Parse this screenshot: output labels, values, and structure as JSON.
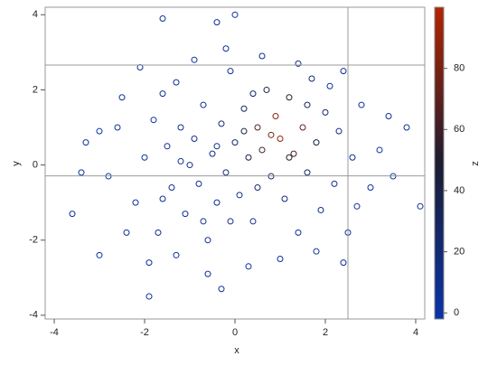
{
  "chart_data": {
    "type": "scatter",
    "xlabel": "x",
    "ylabel": "y",
    "zlabel": "z",
    "xlim": [
      -4.2,
      4.2
    ],
    "xticks": [
      -4,
      -2,
      0,
      2,
      4
    ],
    "ylim": [
      -4.1,
      4.2
    ],
    "yticks": [
      -4,
      -2,
      0,
      2,
      4
    ],
    "zlim": [
      -2,
      100
    ],
    "zticks": [
      0,
      20,
      40,
      60,
      80
    ],
    "colormap": [
      "#0a33a8",
      "#1c1c30",
      "#b32400"
    ],
    "ref_lines": {
      "x": [
        2.5
      ],
      "y": [
        2.66,
        -0.29
      ]
    },
    "x": [
      -3.6,
      -1.6,
      0,
      -0.4,
      4.1,
      3.8,
      -1.9,
      -0.3,
      3.4,
      2.4,
      -3.3,
      -3.0,
      -2.5,
      -2.2,
      -2.0,
      -1.8,
      -1.7,
      -1.5,
      -1.4,
      -1.3,
      -1.2,
      -1.1,
      -1.0,
      -0.9,
      -0.8,
      -0.7,
      -0.6,
      -0.5,
      -0.4,
      -0.3,
      -0.2,
      -0.1,
      0.0,
      0.1,
      0.2,
      0.3,
      0.4,
      0.5,
      0.6,
      0.7,
      0.8,
      0.9,
      1.0,
      1.1,
      1.2,
      1.3,
      1.4,
      1.5,
      1.6,
      1.7,
      1.8,
      1.9,
      2.0,
      2.2,
      2.3,
      2.5,
      2.6,
      2.8,
      3.0,
      3.2,
      -2.8,
      -2.6,
      -2.4,
      -2.1,
      -1.9,
      -1.6,
      -1.3,
      -0.9,
      -0.6,
      -0.2,
      0.3,
      0.6,
      1.0,
      1.4,
      1.8,
      2.1,
      2.4,
      2.7,
      -3.0,
      -3.4,
      3.5,
      -1.2,
      -0.7,
      0.2,
      0.8,
      1.2,
      -0.4,
      0.5,
      -1.6,
      -0.1,
      0.4,
      1.6
    ],
    "y": [
      -1.3,
      3.9,
      4,
      3.8,
      -1.1,
      1.0,
      -3.5,
      -3.3,
      1.3,
      2.5,
      0.6,
      -2.4,
      1.8,
      -1.0,
      0.2,
      1.2,
      -1.8,
      0.5,
      -0.6,
      2.2,
      1.0,
      -1.3,
      0.0,
      0.7,
      -0.5,
      1.6,
      -2.0,
      0.3,
      -1.0,
      1.1,
      -0.2,
      2.5,
      0.6,
      -0.8,
      1.5,
      0.2,
      -1.5,
      1.0,
      0.4,
      2.0,
      -0.3,
      1.3,
      0.7,
      -0.9,
      1.8,
      0.3,
      -1.8,
      1.0,
      -0.2,
      2.3,
      0.6,
      -1.2,
      1.4,
      -0.5,
      0.9,
      -1.8,
      0.2,
      1.6,
      -0.6,
      0.4,
      -0.3,
      1.0,
      -1.8,
      2.6,
      -2.6,
      1.9,
      -2.4,
      2.8,
      -2.9,
      3.1,
      -2.7,
      2.9,
      -2.5,
      2.7,
      -2.3,
      2.1,
      -2.6,
      -1.1,
      0.9,
      -0.2,
      -0.3,
      0.1,
      -1.5,
      0.9,
      0.8,
      0.2,
      0.5,
      -0.6,
      -0.9,
      -1.5,
      1.9,
      1.6
    ],
    "z": [
      2,
      3,
      5,
      4,
      3,
      6,
      2,
      3,
      8,
      10,
      2,
      2,
      3,
      4,
      5,
      6,
      4,
      7,
      6,
      5,
      8,
      7,
      9,
      10,
      9,
      11,
      6,
      12,
      10,
      14,
      15,
      9,
      18,
      14,
      30,
      45,
      10,
      70,
      60,
      40,
      25,
      85,
      90,
      18,
      55,
      65,
      8,
      75,
      30,
      20,
      40,
      12,
      25,
      10,
      15,
      6,
      9,
      7,
      5,
      4,
      3,
      3,
      3,
      3,
      3,
      5,
      4,
      5,
      4,
      6,
      5,
      12,
      6,
      10,
      5,
      9,
      4,
      5,
      2,
      2,
      4,
      8,
      9,
      40,
      80,
      50,
      14,
      20,
      6,
      12,
      25,
      35
    ]
  }
}
